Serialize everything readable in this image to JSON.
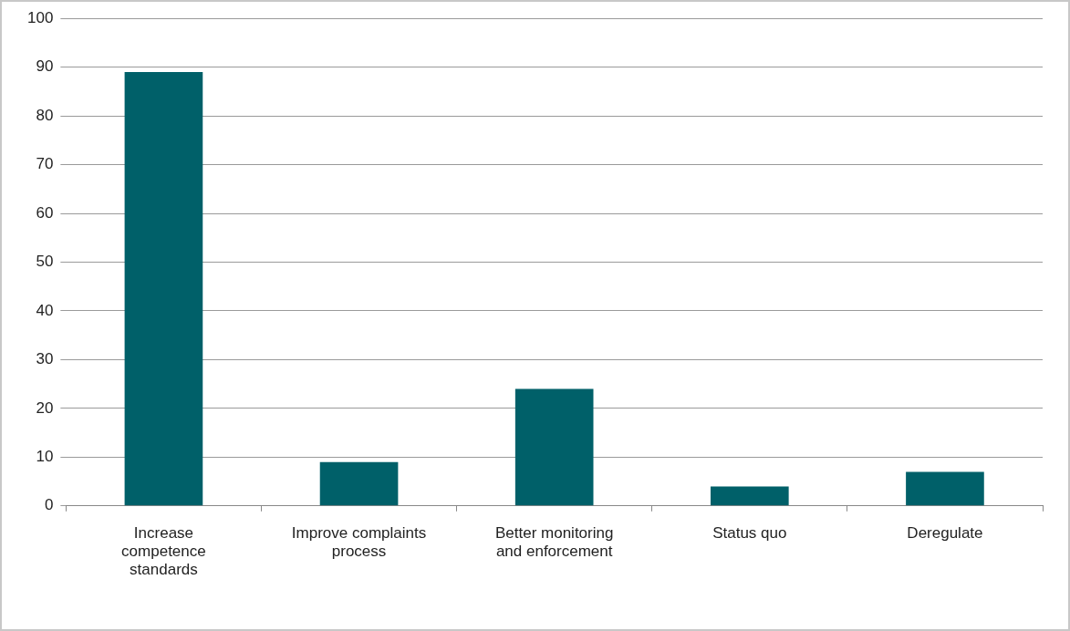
{
  "chart_data": {
    "type": "bar",
    "categories": [
      "Increase competence standards",
      "Improve complaints process",
      "Better monitoring and enforcement",
      "Status quo",
      "Deregulate"
    ],
    "values": [
      89,
      9,
      24,
      4,
      7
    ],
    "color": "#006069",
    "ylim": [
      0,
      100
    ],
    "yticks": [
      0,
      10,
      20,
      30,
      40,
      50,
      60,
      70,
      80,
      90,
      100
    ],
    "grid": "y"
  }
}
